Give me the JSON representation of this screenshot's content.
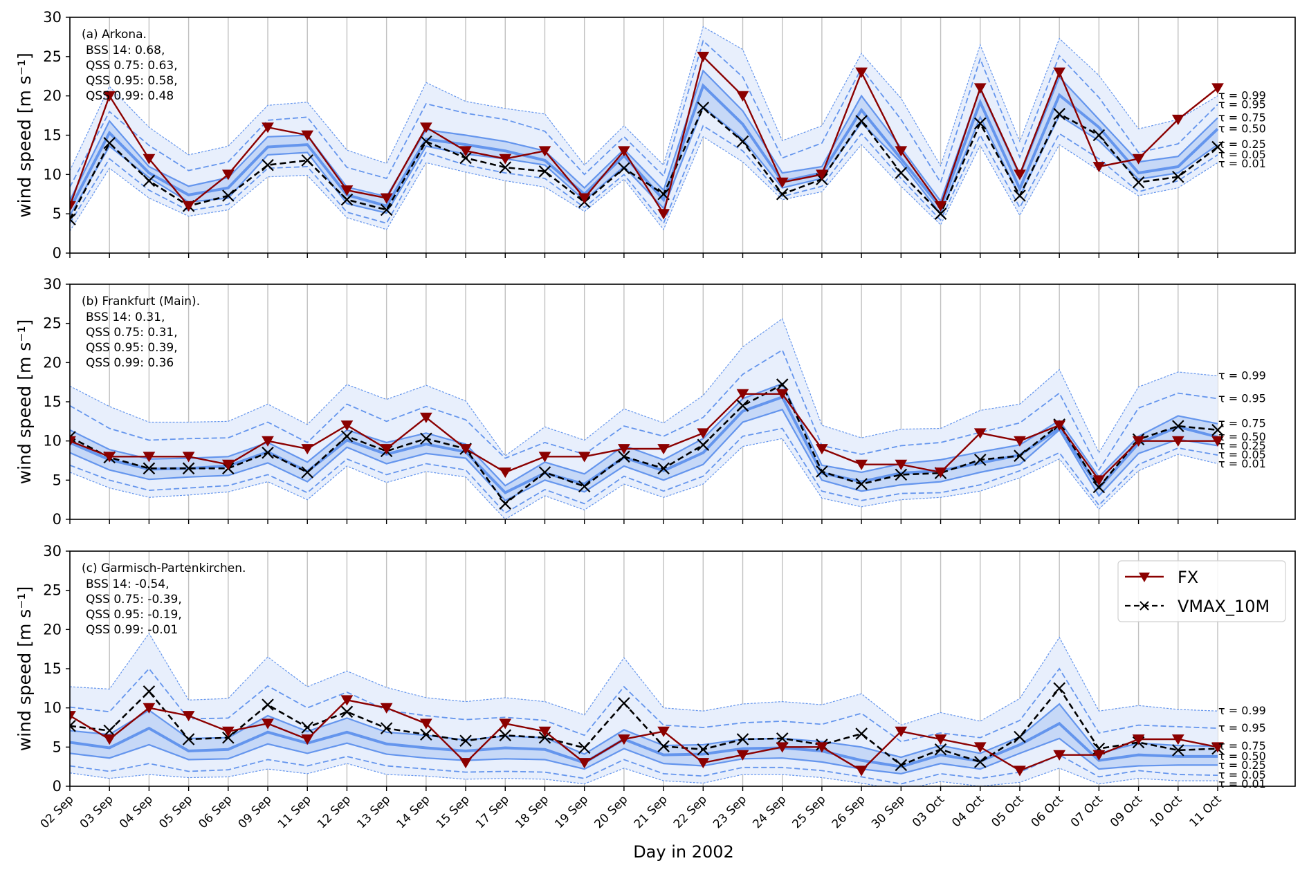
{
  "chart_data": {
    "type": "line",
    "xlabel": "Day in 2002",
    "ylabel": "wind speed [m s⁻¹]",
    "ylim": [
      0,
      30
    ],
    "yticks": [
      0,
      5,
      10,
      15,
      20,
      25,
      30
    ],
    "grid": "vertical",
    "categories": [
      "02 Sep",
      "03 Sep",
      "04 Sep",
      "05 Sep",
      "06 Sep",
      "09 Sep",
      "11 Sep",
      "12 Sep",
      "13 Sep",
      "14 Sep",
      "15 Sep",
      "17 Sep",
      "18 Sep",
      "19 Sep",
      "20 Sep",
      "21 Sep",
      "22 Sep",
      "23 Sep",
      "24 Sep",
      "25 Sep",
      "26 Sep",
      "30 Sep",
      "03 Oct",
      "04 Oct",
      "05 Oct",
      "06 Oct",
      "07 Oct",
      "09 Oct",
      "10 Oct",
      "11 Oct"
    ],
    "legend": {
      "position": "top-right",
      "panel": 2,
      "entries": [
        {
          "name": "FX",
          "color": "#8b0000",
          "style": "solid",
          "marker": "triangle-down"
        },
        {
          "name": "VMAX_10M",
          "color": "#000000",
          "style": "dashed",
          "marker": "x"
        }
      ]
    },
    "quantile_labels": [
      "τ = 0.99",
      "τ = 0.95",
      "τ = 0.75",
      "τ = 0.50",
      "τ = 0.25",
      "τ = 0.05",
      "τ = 0.01"
    ],
    "colors": {
      "fx": "#8b0000",
      "vmax": "#000000",
      "quantile_line": "#6495ed",
      "band_inner": "#c6d8f7",
      "band_outer": "#e8effc",
      "grid": "#c0c0c0"
    },
    "panels": [
      {
        "title": "(a) Arkona.",
        "scores": [
          "BSS 14: 0.68,",
          "QSS 0.75: 0.63,",
          "QSS 0.95: 0.58,",
          "QSS 0.99: 0.48"
        ],
        "fx": [
          6,
          20,
          12,
          6,
          10,
          16,
          15,
          8,
          7,
          16,
          13,
          12,
          13,
          7,
          13,
          5,
          25,
          20,
          9,
          10,
          23,
          13,
          6,
          21,
          10,
          23,
          11,
          12,
          17,
          21
        ],
        "vmax": [
          4.3,
          14,
          9.2,
          6,
          7.3,
          11.2,
          11.8,
          6.8,
          5.5,
          14.2,
          12.1,
          10.9,
          10.4,
          6.5,
          10.8,
          7.5,
          18.5,
          14.2,
          7.5,
          9.4,
          16.8,
          10.2,
          5,
          16.5,
          7.3,
          17.7,
          15,
          9,
          9.7,
          13.5
        ],
        "q01": [
          2.8,
          10.8,
          7,
          4.7,
          5.5,
          9.7,
          9.9,
          4.5,
          3,
          11.5,
          10.3,
          9.2,
          8.4,
          5.3,
          9.4,
          3,
          14.8,
          11.6,
          6.8,
          7.8,
          13.8,
          8.5,
          3.6,
          13.7,
          4.8,
          13.8,
          10.5,
          7.3,
          8.3,
          11.5
        ],
        "q05": [
          3.8,
          12,
          8,
          5.4,
          6.2,
          10.8,
          11,
          5.2,
          3.8,
          12.8,
          11.2,
          10.2,
          9.5,
          5.8,
          10,
          3.8,
          16.2,
          13,
          7.2,
          8.5,
          15.2,
          9.5,
          4.2,
          15,
          5.8,
          15.2,
          12,
          7.8,
          9.2,
          12.5
        ],
        "q25": [
          4.8,
          13.6,
          9.6,
          6.5,
          7,
          12.5,
          12.8,
          6.3,
          5.1,
          13.6,
          12.6,
          12,
          11.2,
          6.7,
          11,
          5.7,
          18.6,
          14.5,
          8.3,
          9.5,
          16.6,
          11.5,
          5,
          17.3,
          7.2,
          17.5,
          14.3,
          9.4,
          10.2,
          13.8
        ],
        "q50": [
          5.6,
          15.3,
          10.2,
          7.4,
          8.3,
          13.5,
          13.8,
          7.4,
          6,
          14.5,
          13.8,
          13,
          11.8,
          7.5,
          12.4,
          6.8,
          21.3,
          16.4,
          9.1,
          10.2,
          18.2,
          12,
          5.8,
          19.2,
          8.2,
          20.1,
          16,
          10.2,
          11,
          15.8
        ],
        "q75": [
          6.7,
          16.8,
          11,
          8.5,
          9.6,
          14.8,
          15,
          8.4,
          7.2,
          15.7,
          15,
          14.2,
          13,
          8.3,
          13.2,
          8,
          23.2,
          18.1,
          10.2,
          11,
          20,
          13.4,
          6.6,
          20.9,
          9.8,
          22.4,
          17,
          11.6,
          12.3,
          17.2
        ],
        "q95": [
          8.4,
          18,
          13.7,
          10.5,
          11.6,
          16.9,
          17.3,
          10.9,
          9.5,
          19,
          17.8,
          17,
          15.5,
          10,
          14.8,
          9.8,
          27,
          22.4,
          12.1,
          14,
          23.5,
          17,
          9,
          24.7,
          12.2,
          25.1,
          19.8,
          12.8,
          13.9,
          18.9
        ],
        "q99": [
          10.5,
          21.2,
          16,
          12.5,
          13.6,
          18.8,
          19.2,
          13.1,
          11.4,
          21.7,
          19.3,
          18.4,
          17.7,
          11.2,
          16.2,
          11.2,
          28.8,
          25.9,
          14.3,
          16.2,
          25.4,
          19.7,
          11.1,
          26.5,
          14.2,
          27.3,
          22.6,
          15.8,
          17,
          20
        ]
      },
      {
        "title": "(b) Frankfurt (Main).",
        "scores": [
          "BSS 14: 0.31,",
          "QSS 0.75: 0.31,",
          "QSS 0.95: 0.39,",
          "QSS 0.99: 0.36"
        ],
        "fx": [
          10,
          8,
          8,
          8,
          7,
          10,
          9,
          12,
          9,
          13,
          9,
          6,
          8,
          8,
          9,
          9,
          11,
          16,
          16,
          9,
          7,
          7,
          6,
          11,
          10,
          12,
          5,
          10,
          10,
          10
        ],
        "vmax": [
          10.5,
          7.9,
          6.5,
          6.5,
          6.5,
          8.5,
          6,
          10.6,
          8.7,
          10.3,
          9,
          2,
          6,
          4.2,
          8,
          6.5,
          9.5,
          14.5,
          17.2,
          6.1,
          4.5,
          5.7,
          5.9,
          7.6,
          8.1,
          12.1,
          4.1,
          10.2,
          11.9,
          11.4
        ],
        "q01": [
          6,
          4,
          2.8,
          3.1,
          3.5,
          4.8,
          2.5,
          6.8,
          4.7,
          6.1,
          5.4,
          0,
          3,
          1.2,
          4.5,
          2.8,
          4.5,
          9.3,
          10.3,
          2.7,
          1.6,
          2.5,
          2.8,
          3.6,
          5.3,
          7.7,
          1.3,
          6.2,
          8.3,
          7.1
        ],
        "q05": [
          6.9,
          5,
          3.7,
          4,
          4.3,
          5.7,
          3.4,
          7.7,
          5.7,
          7.1,
          6.3,
          0.8,
          3.8,
          2,
          5.5,
          3.6,
          5.5,
          10.6,
          11.6,
          3.6,
          2.4,
          3.3,
          3.4,
          4.4,
          6.2,
          8.5,
          1.8,
          7,
          9.1,
          8.2
        ],
        "q25": [
          8.5,
          6.3,
          5.1,
          5.4,
          5.6,
          7.2,
          4.8,
          9.2,
          7.1,
          8.4,
          7.8,
          2.4,
          5,
          3.5,
          6.8,
          5,
          7,
          12.4,
          14,
          5,
          3.6,
          4.4,
          4.8,
          6,
          7,
          11.4,
          3,
          8.4,
          10.2,
          9.4
        ],
        "q50": [
          9.8,
          7.6,
          6.4,
          6.5,
          6.8,
          8.6,
          6.1,
          10.1,
          8.3,
          9.6,
          8.6,
          3.4,
          5.9,
          4.5,
          7.9,
          6.2,
          8.5,
          13.8,
          15.6,
          5.9,
          4.8,
          5.9,
          6.2,
          7.2,
          8.2,
          11.6,
          4,
          9.7,
          11.8,
          10.5
        ],
        "q75": [
          11.4,
          8.9,
          7.7,
          7.8,
          8,
          9.8,
          7.3,
          11.4,
          9.8,
          11,
          9.6,
          4.3,
          7.3,
          5.8,
          9.4,
          7.6,
          10.3,
          15.4,
          17.3,
          6.9,
          6,
          7.1,
          7.6,
          8.6,
          9.5,
          12.6,
          5.4,
          10.6,
          13.2,
          12.2
        ],
        "q95": [
          14.5,
          11.6,
          10.1,
          10.3,
          10.4,
          12.4,
          9.8,
          14.7,
          12.5,
          14.4,
          12.7,
          7.8,
          9.8,
          8.3,
          11.9,
          10.6,
          13,
          18.5,
          21.6,
          9.4,
          8.3,
          9.4,
          9.8,
          11.1,
          12.3,
          16.1,
          6.3,
          14.2,
          16.1,
          15.4
        ],
        "q99": [
          17,
          14.4,
          12.4,
          12.4,
          12.5,
          14.7,
          12.1,
          17.2,
          15.3,
          17.1,
          15.1,
          8.1,
          11.8,
          10.1,
          14.1,
          12.3,
          15.8,
          22,
          25.6,
          12,
          10.4,
          11.5,
          11.6,
          13.9,
          14.7,
          19.1,
          8.5,
          16.9,
          18.8,
          18.3
        ]
      },
      {
        "title": "(c) Garmisch-Partenkirchen.",
        "scores": [
          "BSS 14: -0.54,",
          "QSS 0.75: -0.39,",
          "QSS 0.95: -0.19,",
          "QSS 0.99: -0.01"
        ],
        "fx": [
          9,
          6,
          10,
          9,
          7,
          8,
          6,
          11,
          10,
          8,
          3,
          8,
          7,
          3,
          6,
          7,
          3,
          4,
          5,
          5,
          2,
          7,
          6,
          5,
          2,
          4,
          4,
          6,
          6,
          5
        ],
        "vmax": [
          7.7,
          7.1,
          12.1,
          6,
          6.2,
          10.4,
          7.5,
          9.5,
          7.4,
          6.6,
          5.8,
          6.5,
          6.2,
          4.9,
          10.6,
          5.1,
          4.7,
          6,
          6.1,
          5.3,
          6.7,
          2.7,
          4.7,
          3.1,
          6.3,
          12.5,
          4.8,
          5.6,
          4.6,
          4.8
        ],
        "q01": [
          1.7,
          1,
          1.5,
          1.1,
          1.2,
          2.2,
          1.6,
          2.9,
          1.5,
          1.3,
          0.9,
          1,
          0.9,
          0.3,
          2.3,
          0.7,
          0.4,
          1.5,
          1.5,
          1.1,
          0.4,
          -0.5,
          0.6,
          0,
          0.5,
          2.3,
          0.3,
          1,
          0.7,
          0.7
        ],
        "q05": [
          2.6,
          1.9,
          2.9,
          1.9,
          2.1,
          3.4,
          2.6,
          3.8,
          2.6,
          2.2,
          1.8,
          1.9,
          1.8,
          1,
          3.4,
          1.6,
          1.3,
          2.4,
          2.4,
          2,
          1.2,
          0.3,
          1.6,
          1,
          1.8,
          4,
          1.2,
          2,
          1.5,
          1.4
        ],
        "q25": [
          4.2,
          3.6,
          5.3,
          3.4,
          3.5,
          5.4,
          4.2,
          5.5,
          4.1,
          3.6,
          3.3,
          3.5,
          3.4,
          2.2,
          4.8,
          2.9,
          2.6,
          3.5,
          3.6,
          3.1,
          2.2,
          1.6,
          2.9,
          2.2,
          4.2,
          6.1,
          2.2,
          2.6,
          2.7,
          2.7
        ],
        "q50": [
          5.6,
          4.9,
          7.4,
          4.5,
          4.7,
          6.9,
          5.5,
          6.9,
          5.4,
          4.9,
          4.5,
          4.9,
          4.7,
          3,
          6,
          4,
          4.1,
          4.8,
          4.9,
          4.5,
          3.3,
          2.5,
          4,
          3.2,
          5.3,
          8,
          3.3,
          4,
          3.8,
          3.8
        ],
        "q75": [
          7.1,
          6.6,
          9.7,
          6.1,
          6.2,
          9,
          7,
          8.7,
          6.9,
          6.5,
          5.9,
          6.4,
          6.2,
          4.1,
          7.2,
          5.2,
          5.3,
          6,
          6.1,
          5.7,
          5,
          3.7,
          5.2,
          4.2,
          6.3,
          10.5,
          4.2,
          5.5,
          5.2,
          5.1
        ],
        "q95": [
          10.1,
          9.5,
          15,
          8.6,
          8.7,
          12.8,
          10,
          12,
          9.7,
          9,
          8.5,
          8.8,
          8.4,
          6.5,
          12.7,
          7.8,
          7.5,
          8.1,
          8.3,
          7.9,
          9.3,
          5.7,
          6.8,
          6.2,
          8.4,
          15,
          6.8,
          7.8,
          7.6,
          7.4
        ],
        "q99": [
          12.7,
          12.4,
          19.5,
          11,
          11.2,
          16.5,
          12.7,
          14.7,
          12.6,
          11.3,
          10.8,
          11.3,
          10.8,
          9.1,
          16.4,
          10,
          9.6,
          10.5,
          10.8,
          10.4,
          11.8,
          7.8,
          9.4,
          8.3,
          11.2,
          19,
          9.6,
          10.3,
          9.8,
          9.6
        ]
      }
    ]
  }
}
